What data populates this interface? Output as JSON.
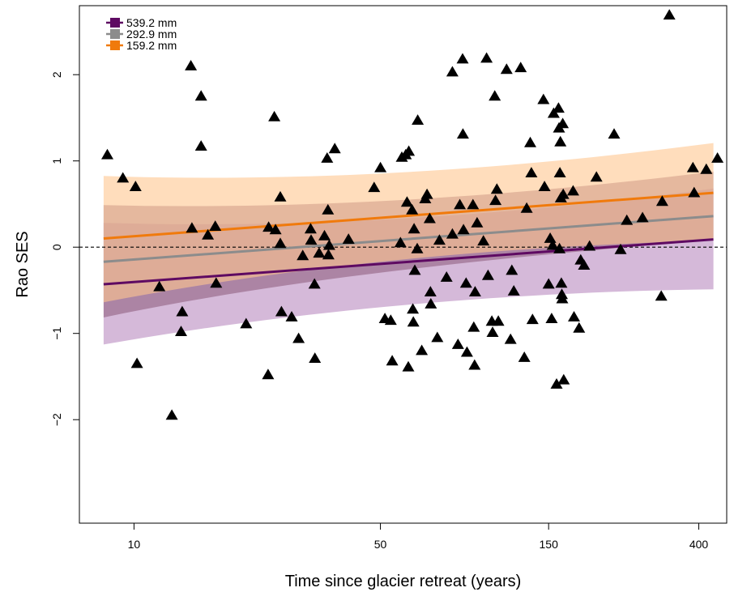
{
  "chart_data": {
    "type": "scatter",
    "title": "",
    "xlabel": "Time since glacier retreat (years)",
    "ylabel": "Rao SES",
    "x_scale": "log",
    "xlim": [
      7.0,
      480
    ],
    "ylim": [
      -3.2,
      2.8
    ],
    "xticks": [
      10,
      50,
      150,
      400
    ],
    "yticks": [
      -2,
      -1,
      0,
      1,
      2
    ],
    "reference_line_y": 0,
    "reference_line_style": "dashed",
    "legend_position": "top-left",
    "marker": "filled-triangle",
    "marker_color": "#000000",
    "points": [
      [
        8.4,
        1.07
      ],
      [
        9.3,
        0.8
      ],
      [
        10.1,
        0.7
      ],
      [
        10.2,
        -1.35
      ],
      [
        11.8,
        -0.46
      ],
      [
        12.8,
        -1.95
      ],
      [
        13.6,
        -0.98
      ],
      [
        13.7,
        -0.75
      ],
      [
        14.5,
        2.1
      ],
      [
        14.6,
        0.22
      ],
      [
        15.5,
        1.75
      ],
      [
        15.5,
        1.17
      ],
      [
        16.2,
        0.14
      ],
      [
        17.0,
        0.24
      ],
      [
        17.1,
        -0.42
      ],
      [
        20.8,
        -0.89
      ],
      [
        24.0,
        -1.48
      ],
      [
        24.1,
        0.23
      ],
      [
        25.0,
        1.51
      ],
      [
        25.2,
        0.2
      ],
      [
        26.0,
        0.58
      ],
      [
        26.0,
        0.04
      ],
      [
        26.2,
        -0.75
      ],
      [
        28.0,
        -0.81
      ],
      [
        29.3,
        -1.06
      ],
      [
        30.1,
        -0.1
      ],
      [
        31.7,
        0.21
      ],
      [
        31.8,
        0.08
      ],
      [
        32.5,
        -0.43
      ],
      [
        32.6,
        -1.29
      ],
      [
        33.5,
        -0.07
      ],
      [
        34.7,
        0.13
      ],
      [
        35.3,
        1.03
      ],
      [
        35.5,
        0.43
      ],
      [
        35.6,
        -0.09
      ],
      [
        35.8,
        0.02
      ],
      [
        37.1,
        1.14
      ],
      [
        40.6,
        0.09
      ],
      [
        48.0,
        0.69
      ],
      [
        50.0,
        0.92
      ],
      [
        51.5,
        -0.83
      ],
      [
        53.5,
        -0.85
      ],
      [
        54.0,
        -1.32
      ],
      [
        57.0,
        0.05
      ],
      [
        57.5,
        1.04
      ],
      [
        59.0,
        1.07
      ],
      [
        59.5,
        0.52
      ],
      [
        60.0,
        -1.39
      ],
      [
        60.2,
        1.11
      ],
      [
        61.5,
        0.43
      ],
      [
        61.8,
        -0.72
      ],
      [
        62.0,
        -0.87
      ],
      [
        62.3,
        0.21
      ],
      [
        62.6,
        -0.27
      ],
      [
        63.8,
        1.47
      ],
      [
        63.6,
        -0.02
      ],
      [
        65.5,
        -1.2
      ],
      [
        67.0,
        0.56
      ],
      [
        67.8,
        0.61
      ],
      [
        69.0,
        0.33
      ],
      [
        69.3,
        -0.52
      ],
      [
        69.5,
        -0.66
      ],
      [
        72.5,
        -1.05
      ],
      [
        73.5,
        0.08
      ],
      [
        77.0,
        -0.35
      ],
      [
        80.0,
        2.03
      ],
      [
        80.0,
        0.15
      ],
      [
        83.0,
        -1.13
      ],
      [
        84.0,
        0.49
      ],
      [
        85.5,
        2.18
      ],
      [
        85.7,
        1.31
      ],
      [
        86.0,
        0.2
      ],
      [
        87.5,
        -0.42
      ],
      [
        88.0,
        -1.22
      ],
      [
        91.5,
        0.49
      ],
      [
        92.0,
        -0.93
      ],
      [
        92.8,
        -0.52
      ],
      [
        92.5,
        -1.37
      ],
      [
        94.0,
        0.28
      ],
      [
        98.0,
        0.07
      ],
      [
        100.0,
        2.19
      ],
      [
        101.0,
        -0.33
      ],
      [
        103.5,
        -0.86
      ],
      [
        104.0,
        -0.99
      ],
      [
        105.5,
        1.75
      ],
      [
        106.0,
        0.54
      ],
      [
        107.0,
        0.67
      ],
      [
        108.0,
        -0.86
      ],
      [
        114.0,
        2.06
      ],
      [
        117.0,
        -1.07
      ],
      [
        118.0,
        -0.27
      ],
      [
        119.5,
        -0.51
      ],
      [
        125.0,
        2.08
      ],
      [
        128.0,
        -1.28
      ],
      [
        130.0,
        0.45
      ],
      [
        133.0,
        1.21
      ],
      [
        134.0,
        0.86
      ],
      [
        135.0,
        -0.84
      ],
      [
        145.0,
        1.71
      ],
      [
        146.0,
        0.7
      ],
      [
        150.0,
        -0.43
      ],
      [
        151.5,
        0.1
      ],
      [
        153.0,
        -0.83
      ],
      [
        154.0,
        0.02
      ],
      [
        155.0,
        1.55
      ],
      [
        158.0,
        -1.59
      ],
      [
        160.0,
        1.61
      ],
      [
        160.5,
        1.38
      ],
      [
        161.0,
        -0.02
      ],
      [
        161.5,
        0.86
      ],
      [
        162.0,
        1.22
      ],
      [
        162.5,
        0.57
      ],
      [
        163.0,
        -0.42
      ],
      [
        163.5,
        -0.55
      ],
      [
        164.0,
        -0.6
      ],
      [
        164.5,
        1.43
      ],
      [
        165.0,
        0.61
      ],
      [
        165.5,
        -1.54
      ],
      [
        176.0,
        0.65
      ],
      [
        177.0,
        -0.81
      ],
      [
        183.0,
        -0.94
      ],
      [
        185.0,
        -0.15
      ],
      [
        189.0,
        -0.21
      ],
      [
        196.0,
        0.01
      ],
      [
        205.0,
        0.81
      ],
      [
        230.0,
        1.31
      ],
      [
        240.0,
        -0.03
      ],
      [
        250.0,
        0.31
      ],
      [
        277.0,
        0.34
      ],
      [
        313.0,
        -0.57
      ],
      [
        315.0,
        0.53
      ],
      [
        330.0,
        2.69
      ],
      [
        385.0,
        0.92
      ],
      [
        388.0,
        0.63
      ],
      [
        420.0,
        0.9
      ],
      [
        452.0,
        1.03
      ]
    ],
    "series": [
      {
        "name": "539.2 mm",
        "color": "#5e0a62",
        "band_color": "#b98bc0",
        "x_range": [
          8.2,
          440
        ],
        "fit": [
          -0.43,
          0.09
        ],
        "band_lower": [
          -0.95,
          -0.38
        ],
        "band_upper": [
          0.1,
          0.57
        ]
      },
      {
        "name": "292.9 mm",
        "color": "#8c8c8c",
        "band_color": "#8a5a78",
        "x_range": [
          8.2,
          440
        ],
        "fit": [
          -0.17,
          0.36
        ],
        "band_lower": [
          -0.65,
          0.14
        ],
        "band_upper": [
          0.32,
          0.78
        ]
      },
      {
        "name": "159.2 mm",
        "color": "#f07a0c",
        "band_color": "#ffc78f",
        "x_range": [
          8.2,
          440
        ],
        "fit": [
          0.1,
          0.63
        ],
        "band_lower": [
          -0.45,
          0.18
        ],
        "band_upper": [
          0.64,
          1.1
        ]
      }
    ]
  }
}
